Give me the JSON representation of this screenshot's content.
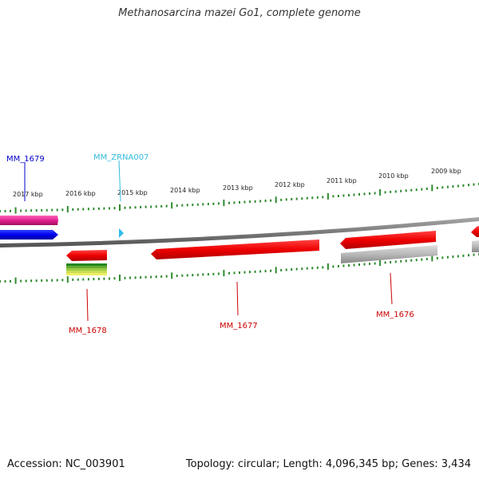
{
  "title": "Methanosarcina mazei Go1, complete genome",
  "footer": {
    "accession": "Accession: NC_003901",
    "summary": "Topology: circular; Length: 4,096,345 bp; Genes: 3,434"
  },
  "ticks": [
    "2017 kbp",
    "2016 kbp",
    "2015 kbp",
    "2014 kbp",
    "2013 kbp",
    "2012 kbp",
    "2011 kbp",
    "2010 kbp",
    "2009 kbp"
  ],
  "features": [
    {
      "id": "MM_1679",
      "label": "MM_1679",
      "color": "#0000cc",
      "strand": "forward",
      "type": "CDS"
    },
    {
      "id": "MM_ZRNA007",
      "label": "MM_ZRNA007",
      "color": "#33bbdd",
      "strand": "forward",
      "type": "ncRNA"
    },
    {
      "id": "MM_1678",
      "label": "MM_1678",
      "color": "#cc0000",
      "strand": "reverse",
      "type": "CDS"
    },
    {
      "id": "MM_1677",
      "label": "MM_1677",
      "color": "#cc0000",
      "strand": "reverse",
      "type": "CDS"
    },
    {
      "id": "MM_1676",
      "label": "MM_1676",
      "color": "#cc0000",
      "strand": "reverse",
      "type": "CDS"
    }
  ],
  "colors": {
    "backbone": "#808080",
    "tick": "#2e8b2e",
    "cds": "#ee0000",
    "gene_pink": "#e0208f",
    "gene_blue": "#0000ee",
    "gene_grey": "#b0b0b0"
  }
}
